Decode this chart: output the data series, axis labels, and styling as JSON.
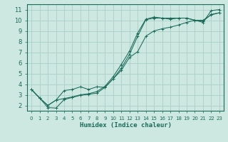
{
  "xlabel": "Humidex (Indice chaleur)",
  "xlim": [
    -0.5,
    23.5
  ],
  "ylim": [
    1.5,
    11.5
  ],
  "xticks": [
    0,
    1,
    2,
    3,
    4,
    5,
    6,
    7,
    8,
    9,
    10,
    11,
    12,
    13,
    14,
    15,
    16,
    17,
    18,
    19,
    20,
    21,
    22,
    23
  ],
  "yticks": [
    2,
    3,
    4,
    5,
    6,
    7,
    8,
    9,
    10,
    11
  ],
  "background_color": "#cce8e0",
  "grid_color": "#aacfc8",
  "line_color": "#1a6b5a",
  "lines": [
    {
      "x": [
        0,
        1,
        2,
        3,
        4,
        5,
        6,
        7,
        8,
        9,
        10,
        11,
        12,
        13,
        14,
        15,
        16,
        17,
        18,
        19,
        20,
        21,
        22,
        23
      ],
      "y": [
        3.5,
        2.7,
        1.8,
        1.75,
        2.55,
        2.75,
        2.95,
        3.05,
        3.15,
        3.7,
        4.5,
        5.5,
        6.8,
        8.5,
        10.05,
        10.2,
        10.2,
        10.2,
        10.2,
        10.2,
        10.0,
        9.8,
        10.9,
        11.0
      ]
    },
    {
      "x": [
        0,
        1,
        2,
        3,
        4,
        5,
        6,
        7,
        8,
        9,
        10,
        11,
        12,
        13,
        14,
        15,
        16,
        17,
        18,
        19,
        20,
        21,
        22,
        23
      ],
      "y": [
        3.5,
        2.7,
        2.0,
        2.5,
        2.65,
        2.8,
        3.0,
        3.1,
        3.3,
        3.8,
        4.7,
        5.85,
        7.1,
        8.8,
        10.1,
        10.3,
        10.2,
        10.1,
        10.2,
        10.2,
        10.0,
        9.9,
        10.55,
        10.7
      ]
    },
    {
      "x": [
        0,
        1,
        2,
        3,
        4,
        5,
        6,
        7,
        8,
        9,
        10,
        11,
        12,
        13,
        14,
        15,
        16,
        17,
        18,
        19,
        20,
        21,
        22,
        23
      ],
      "y": [
        3.5,
        2.7,
        2.0,
        2.5,
        3.4,
        3.5,
        3.75,
        3.5,
        3.75,
        3.7,
        4.5,
        5.3,
        6.5,
        7.05,
        8.5,
        9.0,
        9.2,
        9.35,
        9.55,
        9.8,
        10.0,
        10.0,
        10.5,
        10.7
      ]
    }
  ],
  "xlabel_fontsize": 6.5,
  "tick_fontsize_x": 5.0,
  "tick_fontsize_y": 6.0
}
